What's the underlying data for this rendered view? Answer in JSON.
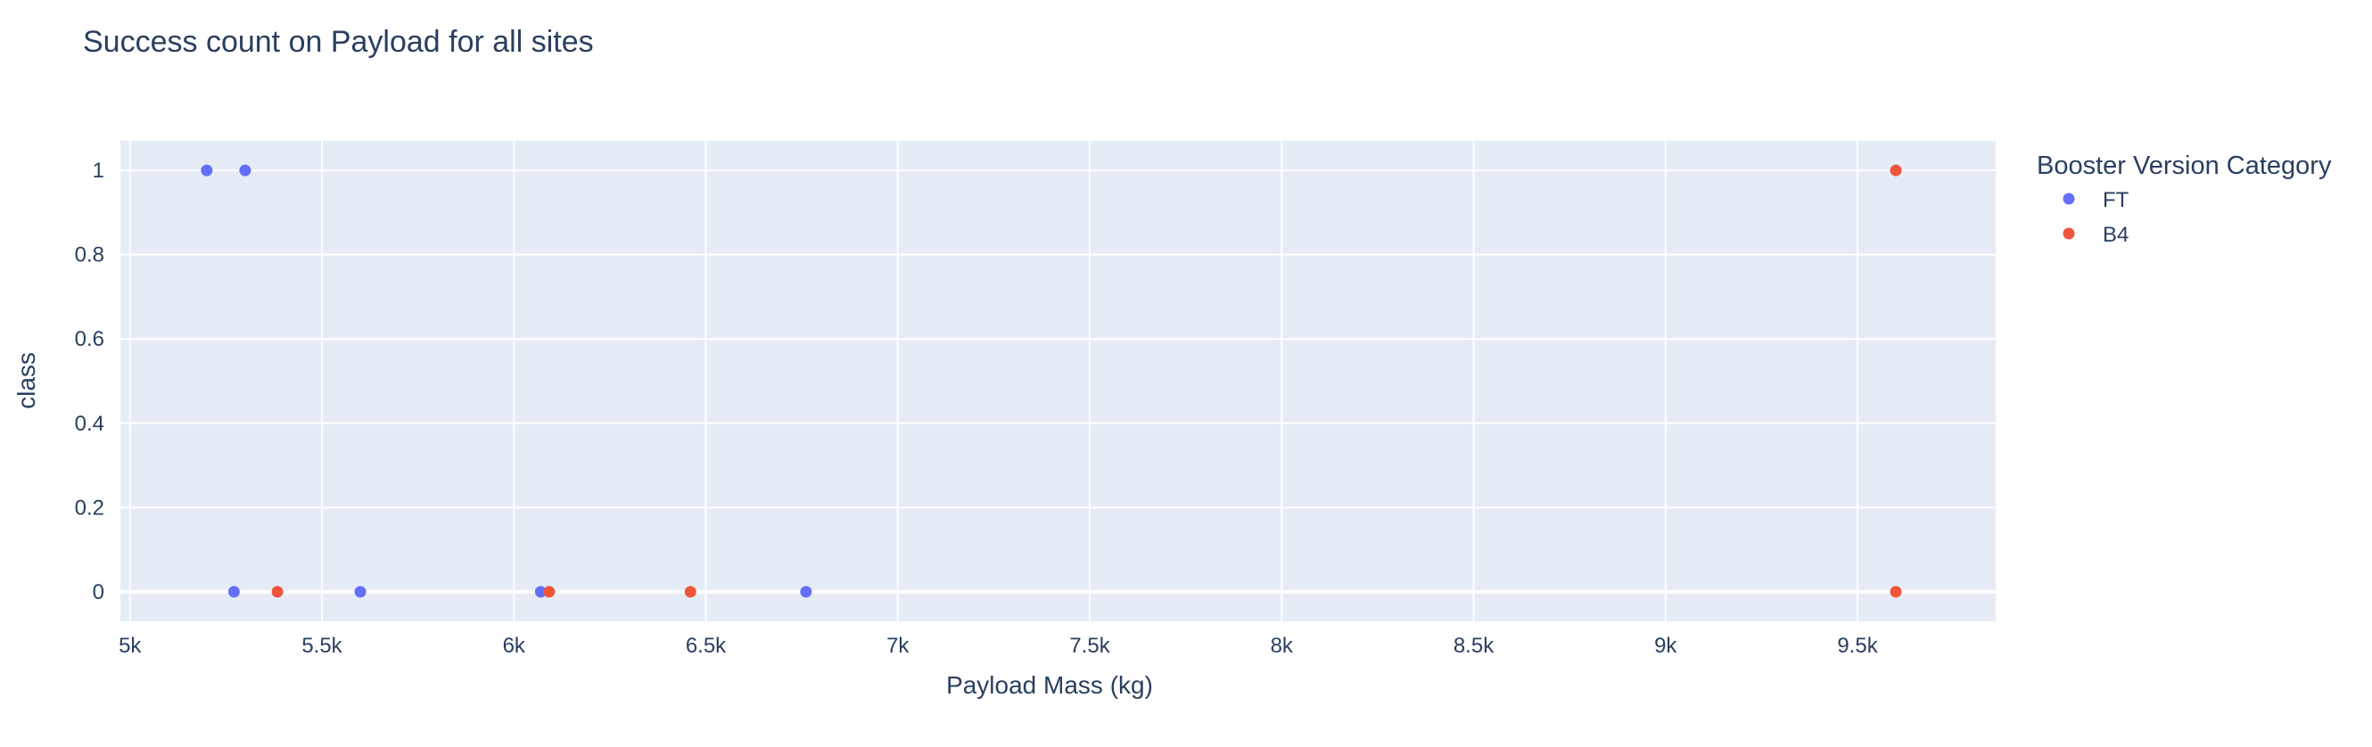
{
  "chart_data": {
    "type": "scatter",
    "title": "Success count on Payload for all sites",
    "xlabel": "Payload Mass (kg)",
    "ylabel": "class",
    "xlim": [
      4975,
      9860
    ],
    "ylim": [
      -0.07,
      1.07
    ],
    "x_ticks": [
      5000,
      5500,
      6000,
      6500,
      7000,
      7500,
      8000,
      8500,
      9000,
      9500
    ],
    "x_tick_labels": [
      "5k",
      "5.5k",
      "6k",
      "6.5k",
      "7k",
      "7.5k",
      "8k",
      "8.5k",
      "9k",
      "9.5k"
    ],
    "y_ticks": [
      0,
      0.2,
      0.4,
      0.6,
      0.8,
      1
    ],
    "y_tick_labels": [
      "0",
      "0.2",
      "0.4",
      "0.6",
      "0.8",
      "1"
    ],
    "grid": true,
    "legend_title": "Booster Version Category",
    "legend_position": "right",
    "plot_background": "#e5ecf6",
    "series": [
      {
        "name": "FT",
        "color": "#636efa",
        "points": [
          {
            "x": 5200,
            "y": 1
          },
          {
            "x": 5300,
            "y": 1
          },
          {
            "x": 5271,
            "y": 0
          },
          {
            "x": 5600,
            "y": 0
          },
          {
            "x": 6070,
            "y": 0
          },
          {
            "x": 6761,
            "y": 0
          }
        ]
      },
      {
        "name": "B4",
        "color": "#ef553b",
        "points": [
          {
            "x": 5384,
            "y": 0
          },
          {
            "x": 6092,
            "y": 0
          },
          {
            "x": 6460,
            "y": 0
          },
          {
            "x": 9600,
            "y": 1
          },
          {
            "x": 9600,
            "y": 0
          }
        ]
      }
    ]
  }
}
